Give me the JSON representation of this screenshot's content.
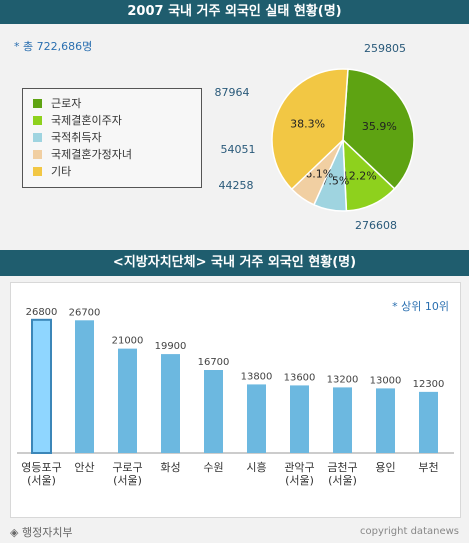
{
  "header": {
    "title1": "2007 국내 거주 외국인 실태 현황(명)",
    "title2": "<지방자치단체> 국내 거주 외국인 현황(명)"
  },
  "total_label": "* 총 722,686명",
  "top_label": "* 상위 10위",
  "source": "◈ 행정자치부",
  "copyright": "copyright datanews",
  "colors": {
    "header_bg": "#1f5d6e",
    "pie": [
      "#5ea312",
      "#8ed11d",
      "#9fd4e0",
      "#f1cfa2",
      "#f2c744"
    ],
    "bar": "#6cb8e0",
    "bar_highlight": "#8fd6ff"
  },
  "chart_data": [
    {
      "type": "pie",
      "title": "2007 국내 거주 외국인 실태 현황(명)",
      "legend_position": "left",
      "slices": [
        {
          "label": "근로자",
          "value": 259805,
          "percent_label": "35.9%",
          "value_label": "259805"
        },
        {
          "label": "국제결혼이주자",
          "value": 87964,
          "percent_label": "12.2%",
          "value_label": "87964"
        },
        {
          "label": "국적취득자",
          "value": 54051,
          "percent_label": "7.5%",
          "value_label": "54051"
        },
        {
          "label": "국제결혼가정자녀",
          "value": 44258,
          "percent_label": "6.1%",
          "value_label": "44258"
        },
        {
          "label": "기타",
          "value": 276608,
          "percent_label": "38.3%",
          "value_label": "276608"
        }
      ]
    },
    {
      "type": "bar",
      "title": "<지방자치단체> 국내 거주 외국인 현황(명)",
      "categories": [
        {
          "line1": "영등포구",
          "line2": "(서울)"
        },
        {
          "line1": "안산",
          "line2": ""
        },
        {
          "line1": "구로구",
          "line2": "(서울)"
        },
        {
          "line1": "화성",
          "line2": ""
        },
        {
          "line1": "수원",
          "line2": ""
        },
        {
          "line1": "시흥",
          "line2": ""
        },
        {
          "line1": "관악구",
          "line2": "(서울)"
        },
        {
          "line1": "금천구",
          "line2": "(서울)"
        },
        {
          "line1": "용인",
          "line2": ""
        },
        {
          "line1": "부천",
          "line2": ""
        }
      ],
      "values": [
        26800,
        26700,
        21000,
        19900,
        16700,
        13800,
        13600,
        13200,
        13000,
        12300
      ],
      "ylim": [
        0,
        30000
      ],
      "highlight_index": 0
    }
  ]
}
